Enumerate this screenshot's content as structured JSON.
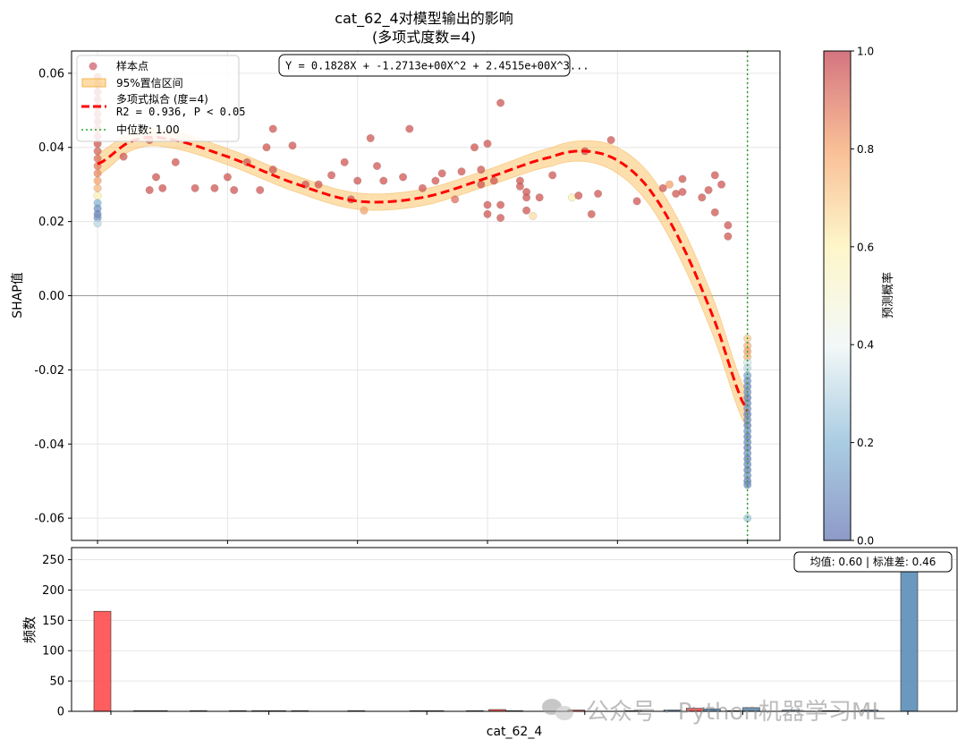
{
  "chart_data": [
    {
      "type": "scatter",
      "title": "cat_62_4对模型输出的影响",
      "subtitle": "(多项式度数=4)",
      "xlabel": "",
      "ylabel": "SHAP值",
      "xlim": [
        -0.04,
        1.05
      ],
      "ylim": [
        -0.066,
        0.066
      ],
      "yticks": [
        -0.06,
        -0.04,
        -0.02,
        0.0,
        0.02,
        0.04,
        0.06
      ],
      "ytick_labels": [
        "-0.06",
        "-0.04",
        "-0.02",
        "0.00",
        "0.02",
        "0.04",
        "0.06"
      ],
      "xticks": [
        0.0,
        0.2,
        0.4,
        0.6,
        0.8,
        1.0
      ],
      "grid": true,
      "zero_line": true,
      "equation_box": "Y = 0.1828X + -1.2713e+00X^2 + 2.4515e+00X^3...",
      "legend": {
        "position": "top-left",
        "entries": [
          {
            "key": "points",
            "label": "样本点"
          },
          {
            "key": "ci",
            "label": "95%置信区间"
          },
          {
            "key": "fit",
            "label": "多项式拟合 (度=4)",
            "label2": "R2 = 0.936, P < 0.05"
          },
          {
            "key": "median",
            "label": "中位数: 1.00"
          }
        ]
      },
      "median_x": 1.0,
      "fit_curve": {
        "x": [
          0.0,
          0.05,
          0.1,
          0.2,
          0.3,
          0.4,
          0.5,
          0.6,
          0.7,
          0.75,
          0.8,
          0.85,
          0.9,
          0.95,
          1.0
        ],
        "y": [
          0.0355,
          0.0415,
          0.0425,
          0.0375,
          0.0305,
          0.0255,
          0.0265,
          0.0318,
          0.0375,
          0.039,
          0.0365,
          0.0285,
          0.0135,
          -0.007,
          -0.031
        ],
        "ci_halfwidth": [
          0.003,
          0.0025,
          0.0023,
          0.0022,
          0.0022,
          0.0022,
          0.0022,
          0.0022,
          0.0025,
          0.0028,
          0.0035,
          0.0042,
          0.0048,
          0.005,
          0.0048
        ],
        "color": "#ff0000"
      },
      "points": [
        {
          "x": 0.0,
          "y": 0.059,
          "p": 0.98
        },
        {
          "x": 0.0,
          "y": 0.057,
          "p": 0.97
        },
        {
          "x": 0.0,
          "y": 0.055,
          "p": 0.98
        },
        {
          "x": 0.0,
          "y": 0.053,
          "p": 0.96
        },
        {
          "x": 0.0,
          "y": 0.051,
          "p": 0.97
        },
        {
          "x": 0.0,
          "y": 0.049,
          "p": 0.95
        },
        {
          "x": 0.0,
          "y": 0.047,
          "p": 0.96
        },
        {
          "x": 0.0,
          "y": 0.045,
          "p": 0.94
        },
        {
          "x": 0.0,
          "y": 0.043,
          "p": 0.93
        },
        {
          "x": 0.0,
          "y": 0.041,
          "p": 0.95
        },
        {
          "x": 0.0,
          "y": 0.039,
          "p": 0.92
        },
        {
          "x": 0.0,
          "y": 0.037,
          "p": 0.9
        },
        {
          "x": 0.0,
          "y": 0.035,
          "p": 0.88
        },
        {
          "x": 0.0,
          "y": 0.033,
          "p": 0.85
        },
        {
          "x": 0.0,
          "y": 0.031,
          "p": 0.8
        },
        {
          "x": 0.0,
          "y": 0.029,
          "p": 0.75
        },
        {
          "x": 0.0,
          "y": 0.027,
          "p": 0.6
        },
        {
          "x": 0.0,
          "y": 0.025,
          "p": 0.2
        },
        {
          "x": 0.0,
          "y": 0.0235,
          "p": 0.1
        },
        {
          "x": 0.0,
          "y": 0.022,
          "p": 0.05
        },
        {
          "x": 0.0,
          "y": 0.021,
          "p": 0.1
        },
        {
          "x": 0.0,
          "y": 0.0195,
          "p": 0.3
        },
        {
          "x": 0.04,
          "y": 0.0375,
          "p": 0.95
        },
        {
          "x": 0.08,
          "y": 0.042,
          "p": 0.95
        },
        {
          "x": 0.08,
          "y": 0.0285,
          "p": 0.95
        },
        {
          "x": 0.09,
          "y": 0.032,
          "p": 0.95
        },
        {
          "x": 0.1,
          "y": 0.029,
          "p": 0.95
        },
        {
          "x": 0.12,
          "y": 0.036,
          "p": 0.95
        },
        {
          "x": 0.15,
          "y": 0.029,
          "p": 0.95
        },
        {
          "x": 0.18,
          "y": 0.029,
          "p": 0.95
        },
        {
          "x": 0.2,
          "y": 0.032,
          "p": 0.95
        },
        {
          "x": 0.21,
          "y": 0.0285,
          "p": 0.95
        },
        {
          "x": 0.23,
          "y": 0.036,
          "p": 0.95
        },
        {
          "x": 0.25,
          "y": 0.0285,
          "p": 0.95
        },
        {
          "x": 0.26,
          "y": 0.04,
          "p": 0.95
        },
        {
          "x": 0.27,
          "y": 0.045,
          "p": 0.95
        },
        {
          "x": 0.27,
          "y": 0.034,
          "p": 0.95
        },
        {
          "x": 0.3,
          "y": 0.0405,
          "p": 0.95
        },
        {
          "x": 0.32,
          "y": 0.03,
          "p": 0.95
        },
        {
          "x": 0.34,
          "y": 0.03,
          "p": 0.95
        },
        {
          "x": 0.36,
          "y": 0.0325,
          "p": 0.95
        },
        {
          "x": 0.38,
          "y": 0.036,
          "p": 0.95
        },
        {
          "x": 0.39,
          "y": 0.026,
          "p": 0.95
        },
        {
          "x": 0.4,
          "y": 0.031,
          "p": 0.95
        },
        {
          "x": 0.41,
          "y": 0.023,
          "p": 0.8
        },
        {
          "x": 0.42,
          "y": 0.0425,
          "p": 0.95
        },
        {
          "x": 0.43,
          "y": 0.035,
          "p": 0.95
        },
        {
          "x": 0.44,
          "y": 0.031,
          "p": 0.95
        },
        {
          "x": 0.47,
          "y": 0.032,
          "p": 0.95
        },
        {
          "x": 0.48,
          "y": 0.045,
          "p": 0.95
        },
        {
          "x": 0.5,
          "y": 0.029,
          "p": 0.95
        },
        {
          "x": 0.52,
          "y": 0.031,
          "p": 0.95
        },
        {
          "x": 0.53,
          "y": 0.033,
          "p": 0.95
        },
        {
          "x": 0.55,
          "y": 0.026,
          "p": 0.9
        },
        {
          "x": 0.56,
          "y": 0.0335,
          "p": 0.95
        },
        {
          "x": 0.58,
          "y": 0.04,
          "p": 0.95
        },
        {
          "x": 0.59,
          "y": 0.034,
          "p": 0.95
        },
        {
          "x": 0.59,
          "y": 0.03,
          "p": 0.95
        },
        {
          "x": 0.6,
          "y": 0.041,
          "p": 0.95
        },
        {
          "x": 0.6,
          "y": 0.0245,
          "p": 0.95
        },
        {
          "x": 0.6,
          "y": 0.022,
          "p": 0.95
        },
        {
          "x": 0.61,
          "y": 0.031,
          "p": 0.95
        },
        {
          "x": 0.62,
          "y": 0.052,
          "p": 0.95
        },
        {
          "x": 0.62,
          "y": 0.0245,
          "p": 0.95
        },
        {
          "x": 0.62,
          "y": 0.021,
          "p": 0.95
        },
        {
          "x": 0.65,
          "y": 0.031,
          "p": 0.95
        },
        {
          "x": 0.65,
          "y": 0.0295,
          "p": 0.95
        },
        {
          "x": 0.66,
          "y": 0.028,
          "p": 0.95
        },
        {
          "x": 0.66,
          "y": 0.0265,
          "p": 0.95
        },
        {
          "x": 0.66,
          "y": 0.023,
          "p": 0.95
        },
        {
          "x": 0.67,
          "y": 0.0215,
          "p": 0.65
        },
        {
          "x": 0.68,
          "y": 0.0265,
          "p": 0.95
        },
        {
          "x": 0.7,
          "y": 0.0325,
          "p": 0.95
        },
        {
          "x": 0.73,
          "y": 0.0265,
          "p": 0.6
        },
        {
          "x": 0.74,
          "y": 0.027,
          "p": 0.95
        },
        {
          "x": 0.75,
          "y": 0.039,
          "p": 0.95
        },
        {
          "x": 0.76,
          "y": 0.022,
          "p": 0.95
        },
        {
          "x": 0.77,
          "y": 0.0275,
          "p": 0.95
        },
        {
          "x": 0.79,
          "y": 0.042,
          "p": 0.95
        },
        {
          "x": 0.83,
          "y": 0.0255,
          "p": 0.95
        },
        {
          "x": 0.87,
          "y": 0.029,
          "p": 0.95
        },
        {
          "x": 0.88,
          "y": 0.03,
          "p": 0.8
        },
        {
          "x": 0.89,
          "y": 0.0275,
          "p": 0.95
        },
        {
          "x": 0.9,
          "y": 0.0315,
          "p": 0.95
        },
        {
          "x": 0.9,
          "y": 0.028,
          "p": 0.95
        },
        {
          "x": 0.93,
          "y": 0.0265,
          "p": 0.95
        },
        {
          "x": 0.94,
          "y": 0.0285,
          "p": 0.95
        },
        {
          "x": 0.95,
          "y": 0.0325,
          "p": 0.95
        },
        {
          "x": 0.95,
          "y": 0.0225,
          "p": 0.95
        },
        {
          "x": 0.96,
          "y": 0.03,
          "p": 0.95
        },
        {
          "x": 0.97,
          "y": 0.019,
          "p": 0.95
        },
        {
          "x": 0.97,
          "y": 0.016,
          "p": 0.95
        },
        {
          "x": 1.0,
          "y": -0.0115,
          "p": 0.7
        },
        {
          "x": 1.0,
          "y": -0.0135,
          "p": 0.75
        },
        {
          "x": 1.0,
          "y": -0.015,
          "p": 0.8
        },
        {
          "x": 1.0,
          "y": -0.0165,
          "p": 0.75
        },
        {
          "x": 1.0,
          "y": -0.018,
          "p": 0.35
        },
        {
          "x": 1.0,
          "y": -0.0195,
          "p": 0.3
        },
        {
          "x": 1.0,
          "y": -0.0215,
          "p": 0.15
        },
        {
          "x": 1.0,
          "y": -0.023,
          "p": 0.1
        },
        {
          "x": 1.0,
          "y": -0.0245,
          "p": 0.08
        },
        {
          "x": 1.0,
          "y": -0.026,
          "p": 0.1
        },
        {
          "x": 1.0,
          "y": -0.0275,
          "p": 0.05
        },
        {
          "x": 1.0,
          "y": -0.029,
          "p": 0.08
        },
        {
          "x": 1.0,
          "y": -0.0305,
          "p": 0.1
        },
        {
          "x": 1.0,
          "y": -0.032,
          "p": 0.05
        },
        {
          "x": 1.0,
          "y": -0.0335,
          "p": 0.08
        },
        {
          "x": 1.0,
          "y": -0.035,
          "p": 0.05
        },
        {
          "x": 1.0,
          "y": -0.0365,
          "p": 0.1
        },
        {
          "x": 1.0,
          "y": -0.038,
          "p": 0.05
        },
        {
          "x": 1.0,
          "y": -0.0395,
          "p": 0.08
        },
        {
          "x": 1.0,
          "y": -0.041,
          "p": 0.05
        },
        {
          "x": 1.0,
          "y": -0.0425,
          "p": 0.1
        },
        {
          "x": 1.0,
          "y": -0.044,
          "p": 0.05
        },
        {
          "x": 1.0,
          "y": -0.0455,
          "p": 0.08
        },
        {
          "x": 1.0,
          "y": -0.047,
          "p": 0.05
        },
        {
          "x": 1.0,
          "y": -0.0485,
          "p": 0.1
        },
        {
          "x": 1.0,
          "y": -0.05,
          "p": 0.05
        },
        {
          "x": 1.0,
          "y": -0.051,
          "p": 0.08
        },
        {
          "x": 1.0,
          "y": -0.06,
          "p": 0.25
        }
      ]
    },
    {
      "type": "bar",
      "xlabel": "cat_62_4",
      "ylabel": "频数",
      "ylim": [
        0,
        270
      ],
      "yticks": [
        0,
        50,
        100,
        150,
        200,
        250
      ],
      "grid": true,
      "stats_box": "均值: 0.60 | 标准差: 0.46",
      "bin_centers": [
        0.0,
        0.05,
        0.1,
        0.15,
        0.2,
        0.25,
        0.3,
        0.35,
        0.4,
        0.45,
        0.5,
        0.55,
        0.6,
        0.65,
        0.7,
        0.75,
        0.8,
        0.85,
        0.9,
        0.95,
        1.0
      ],
      "series": [
        {
          "values": [
            165,
            1,
            0,
            0,
            1,
            1,
            0,
            0,
            1,
            0,
            3,
            0,
            2,
            0,
            0,
            5,
            1,
            0,
            0,
            0,
            0
          ],
          "color": "#ff4d4d"
        },
        {
          "values": [
            0,
            1,
            1,
            1,
            1,
            0,
            1,
            0,
            1,
            1,
            1,
            0,
            0,
            1,
            2,
            4,
            6,
            2,
            1,
            2,
            255
          ],
          "color": "#5b8db8"
        }
      ]
    }
  ],
  "colorbar": {
    "label": "预测概率",
    "ticks": [
      "0.0",
      "0.2",
      "0.4",
      "0.6",
      "0.8",
      "1.0"
    ],
    "colors": [
      "#5e6fb0",
      "#86b7d6",
      "#eef6f5",
      "#fdf2b3",
      "#f6a36a",
      "#c23b4a"
    ]
  },
  "watermark": "公众号 · Python机器学习ML"
}
